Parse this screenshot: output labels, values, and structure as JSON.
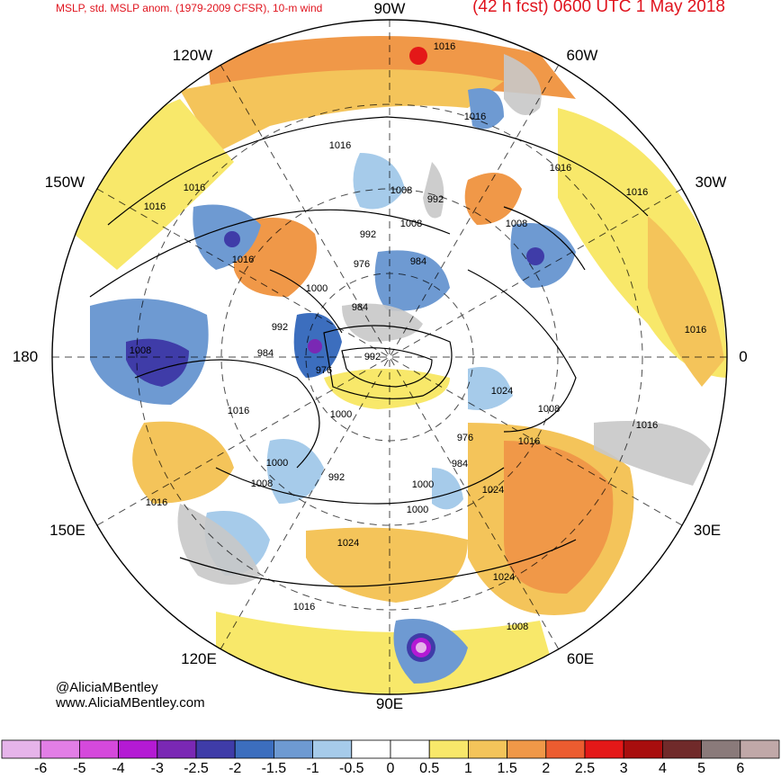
{
  "header": {
    "title_left": "MSLP, std. MSLP anom. (1979-2009 CFSR), 10-m wind",
    "title_right": "(42 h fcst) 0600 UTC 1 May 2018"
  },
  "longitude_labels": [
    {
      "id": "90w",
      "text": "90W"
    },
    {
      "id": "60w",
      "text": "60W"
    },
    {
      "id": "30w",
      "text": "30W"
    },
    {
      "id": "0",
      "text": "0"
    },
    {
      "id": "30e",
      "text": "30E"
    },
    {
      "id": "60e",
      "text": "60E"
    },
    {
      "id": "90e",
      "text": "90E"
    },
    {
      "id": "120e",
      "text": "120E"
    },
    {
      "id": "150e",
      "text": "150E"
    },
    {
      "id": "180",
      "text": "180"
    },
    {
      "id": "150w",
      "text": "150W"
    },
    {
      "id": "120w",
      "text": "120W"
    }
  ],
  "credits": {
    "handle": "@AliciaMBentley",
    "website": "www.AliciaMBentley.com"
  },
  "isobar_labels": [
    "1016",
    "1016",
    "1016",
    "1016",
    "1016",
    "1016",
    "1016",
    "1016",
    "1016",
    "1016",
    "1016",
    "1016",
    "1016",
    "1016",
    "1008",
    "1008",
    "1008",
    "1008",
    "1008",
    "1008",
    "1008",
    "1000",
    "1000",
    "1000",
    "1000",
    "1000",
    "992",
    "992",
    "992",
    "992",
    "992",
    "984",
    "984",
    "984",
    "984",
    "976",
    "976",
    "976",
    "1024",
    "1024",
    "1024",
    "1024"
  ],
  "colorbar": {
    "labels": [
      "-6",
      "-5",
      "-4",
      "-3",
      "-2.5",
      "-2",
      "-1.5",
      "-1",
      "-0.5",
      "0",
      "0.5",
      "1",
      "1.5",
      "2",
      "2.5",
      "3",
      "4",
      "5",
      "6"
    ],
    "colors": [
      "#e6b4ea",
      "#e27ee6",
      "#d549dc",
      "#b41ad4",
      "#7a28b4",
      "#3f3ca8",
      "#3c6ebe",
      "#6e9ad2",
      "#a6cbea",
      "#ffffff",
      "#ffffff",
      "#f8e86a",
      "#f4c45a",
      "#f09848",
      "#ec5c30",
      "#e41818",
      "#a80e0e",
      "#702a2a",
      "#8a7a7a",
      "#c0a8a8"
    ]
  }
}
